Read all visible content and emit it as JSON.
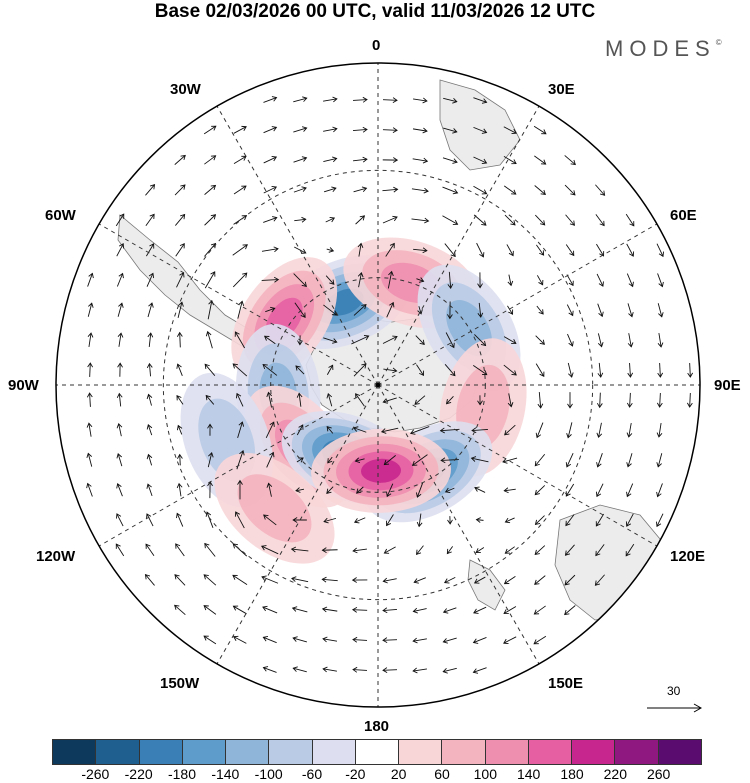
{
  "title": "Base 02/03/2026 00 UTC, valid 11/03/2026 12 UTC",
  "logo": "MODES",
  "logo_mark": "©",
  "longitude_labels": {
    "top": "0",
    "top_left": "30W",
    "top_right": "30E",
    "upper_left": "60W",
    "upper_right": "60E",
    "left": "90W",
    "right": "90E",
    "lower_left": "120W",
    "lower_right": "120E",
    "bottom_left": "150W",
    "bottom_right": "150E",
    "bottom": "180"
  },
  "vector_scale": {
    "label": "30"
  },
  "colorbar": {
    "colors": [
      "#0d3a5c",
      "#1f5f8f",
      "#3a7fb5",
      "#5e9ccb",
      "#8fb6d9",
      "#b9cbe5",
      "#dddff0",
      "#ffffff",
      "#f8d6d8",
      "#f4b4bf",
      "#ef8fb0",
      "#e65fa3",
      "#c6268d",
      "#8e1780",
      "#5a0d6e"
    ],
    "ticks": [
      "-260",
      "-220",
      "-180",
      "-140",
      "-100",
      "-60",
      "-20",
      "20",
      "60",
      "100",
      "140",
      "180",
      "220",
      "260"
    ]
  },
  "anomalies": [
    {
      "lat": 25,
      "lon": -22,
      "v": -200
    },
    {
      "lat": 30,
      "lon": 18,
      "v": 110
    },
    {
      "lat": 32,
      "lon": -55,
      "v": 150
    },
    {
      "lat": 30,
      "lon": 58,
      "v": -100
    },
    {
      "lat": 28,
      "lon": -95,
      "v": -110
    },
    {
      "lat": 30,
      "lon": 102,
      "v": 70
    },
    {
      "lat": 28,
      "lon": -128,
      "v": 120
    },
    {
      "lat": 28,
      "lon": 150,
      "v": -190
    },
    {
      "lat": 22,
      "lon": -158,
      "v": -210
    },
    {
      "lat": 24,
      "lon": 178,
      "v": 190
    },
    {
      "lat": 45,
      "lon": -110,
      "v": -60
    },
    {
      "lat": 45,
      "lon": -140,
      "v": 60
    }
  ]
}
